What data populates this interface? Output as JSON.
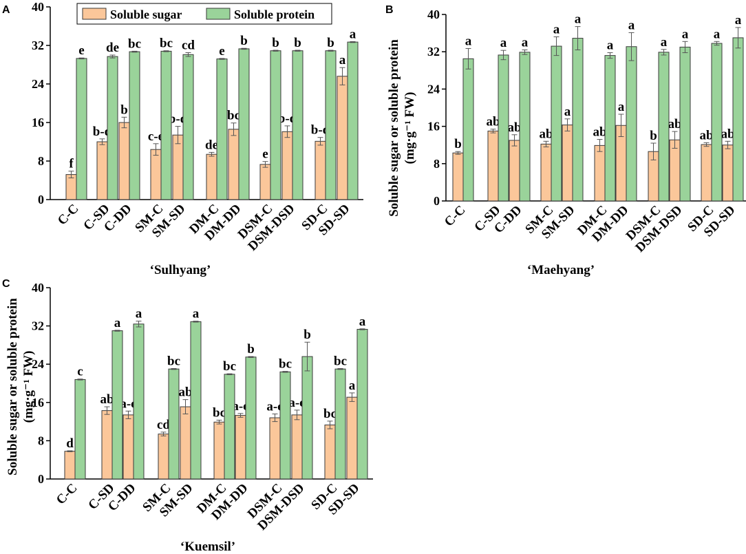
{
  "legend": {
    "sugar_label": "Soluble sugar",
    "protein_label": "Soluble protein"
  },
  "colors": {
    "sugar": "#fbc79a",
    "protein": "#9ad39a",
    "edge": "#3a3a3a",
    "axis": "#000000"
  },
  "chart_data": [
    {
      "panel": "A",
      "type": "bar",
      "cultivar": "‘Sulhyang’",
      "ylabel": "",
      "ylim": [
        0,
        40
      ],
      "yticks": [
        0,
        8,
        16,
        24,
        32,
        40
      ],
      "categories": [
        "C-C",
        "C-SD",
        "C-DD",
        "SM-C",
        "SM-SD",
        "DM-C",
        "DM-DD",
        "DSM-C",
        "DSM-DSD",
        "SD-C",
        "SD-SD"
      ],
      "series": [
        {
          "name": "Soluble sugar",
          "values": [
            5.2,
            12.0,
            16.0,
            10.4,
            13.4,
            9.4,
            14.6,
            7.3,
            14.1,
            12.1,
            25.6
          ],
          "errors": [
            0.7,
            0.6,
            1.1,
            1.2,
            1.8,
            0.4,
            1.3,
            0.6,
            1.2,
            0.8,
            1.8
          ],
          "letters": [
            "f",
            "b-d",
            "b",
            "c-e",
            "b-d",
            "de",
            "bc",
            "e",
            "b-d",
            "b-d",
            "a"
          ]
        },
        {
          "name": "Soluble protein",
          "values": [
            29.3,
            29.7,
            30.7,
            30.8,
            30.1,
            29.2,
            31.3,
            30.9,
            30.9,
            30.9,
            32.7
          ],
          "errors": [
            0.1,
            0.3,
            0.1,
            0.1,
            0.4,
            0.1,
            0.1,
            0.1,
            0.1,
            0.1,
            0.1
          ],
          "letters": [
            "e",
            "de",
            "bc",
            "bc",
            "cd",
            "e",
            "b",
            "b",
            "b",
            "b",
            "a"
          ]
        }
      ]
    },
    {
      "panel": "B",
      "type": "bar",
      "cultivar": "‘Maehyang’",
      "ylabel": "Soluble sugar or soluble protein (mg·g⁻¹ FW)",
      "ylim": [
        0,
        40
      ],
      "yticks": [
        0,
        8,
        16,
        24,
        32,
        40
      ],
      "categories": [
        "C-C",
        "C-SD",
        "C-DD",
        "SM-C",
        "SM-SD",
        "DM-C",
        "DM-DD",
        "DSM-C",
        "DSM-DSD",
        "SD-C",
        "SD-SD"
      ],
      "series": [
        {
          "name": "Soluble sugar",
          "values": [
            10.3,
            15.0,
            13.0,
            12.2,
            16.3,
            11.9,
            16.2,
            10.6,
            13.1,
            12.1,
            12.0
          ],
          "errors": [
            0.3,
            0.4,
            1.2,
            0.6,
            1.3,
            1.3,
            2.4,
            1.8,
            1.8,
            0.4,
            0.8
          ],
          "letters": [
            "b",
            "ab",
            "ab",
            "ab",
            "a",
            "ab",
            "a",
            "b",
            "ab",
            "ab",
            "ab"
          ]
        },
        {
          "name": "Soluble protein",
          "values": [
            30.5,
            31.3,
            31.9,
            33.2,
            34.9,
            31.2,
            33.1,
            31.9,
            33.0,
            33.8,
            35.0
          ],
          "errors": [
            2.2,
            1.0,
            0.5,
            2.0,
            2.5,
            0.6,
            3.0,
            0.6,
            1.2,
            0.4,
            2.2
          ],
          "letters": [
            "a",
            "a",
            "a",
            "a",
            "a",
            "a",
            "a",
            "a",
            "a",
            "a",
            "a"
          ]
        }
      ]
    },
    {
      "panel": "C",
      "type": "bar",
      "cultivar": "‘Kuemsil’",
      "ylabel": "Soluble sugar or soluble protein (mg·g⁻¹ FW)",
      "ylim": [
        0,
        40
      ],
      "yticks": [
        0,
        8,
        16,
        24,
        32,
        40
      ],
      "categories": [
        "C-C",
        "C-SD",
        "C-DD",
        "SM-C",
        "SM-SD",
        "DM-C",
        "DM-DD",
        "DSM-C",
        "DSM-DSD",
        "SD-C",
        "SD-SD"
      ],
      "series": [
        {
          "name": "Soluble sugar",
          "values": [
            5.8,
            14.3,
            13.4,
            9.4,
            15.1,
            11.9,
            13.3,
            12.8,
            13.4,
            11.3,
            17.1
          ],
          "errors": [
            0.1,
            0.8,
            0.8,
            0.4,
            1.5,
            0.4,
            0.4,
            0.8,
            1.0,
            0.8,
            0.9
          ],
          "letters": [
            "d",
            "ab",
            "a-c",
            "cd",
            "ab",
            "bc",
            "a-c",
            "a-c",
            "a-c",
            "bc",
            "a"
          ]
        },
        {
          "name": "Soluble protein",
          "values": [
            20.8,
            31.0,
            32.4,
            23.0,
            32.9,
            21.9,
            25.5,
            22.4,
            25.6,
            23.0,
            31.3
          ],
          "errors": [
            0.1,
            0.1,
            0.6,
            0.1,
            0.1,
            0.1,
            0.1,
            0.1,
            3.0,
            0.1,
            0.1
          ],
          "letters": [
            "c",
            "a",
            "a",
            "bc",
            "a",
            "bc",
            "b",
            "bc",
            "b",
            "bc",
            "a"
          ]
        }
      ]
    }
  ]
}
